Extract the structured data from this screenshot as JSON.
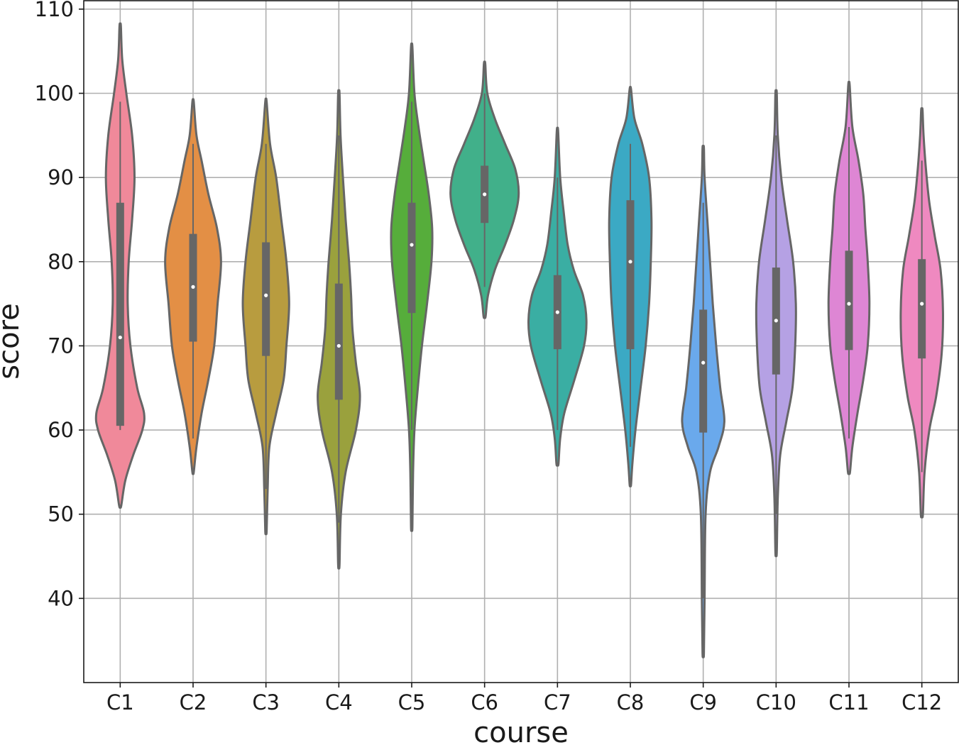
{
  "chart_data": {
    "type": "violin",
    "title": "",
    "xlabel": "course",
    "ylabel": "score",
    "ylim": [
      30,
      111
    ],
    "yticks": [
      40,
      50,
      60,
      70,
      80,
      90,
      100,
      110
    ],
    "ytick_labels": [
      "40",
      "50",
      "60",
      "70",
      "80",
      "90",
      "100",
      "110"
    ],
    "grid": true,
    "legend": "none",
    "categories": [
      "C1",
      "C2",
      "C3",
      "C4",
      "C5",
      "C6",
      "C7",
      "C8",
      "C9",
      "C10",
      "C11",
      "C12"
    ],
    "colors": [
      "#f0899a",
      "#e38f45",
      "#b89c3f",
      "#9aa13d",
      "#56ad3b",
      "#41b08a",
      "#3aaea3",
      "#3ba9c4",
      "#6aa9ec",
      "#b5a1e4",
      "#de86d4",
      "#ef89c0"
    ],
    "series": [
      {
        "course": "C1",
        "min": 51,
        "q1": 60.5,
        "median": 71,
        "q3": 87,
        "max": 108,
        "whisker_low": 60,
        "whisker_high": 99,
        "density": [
          [
            51,
            0.03
          ],
          [
            54,
            0.15
          ],
          [
            57,
            0.38
          ],
          [
            60,
            0.65
          ],
          [
            62,
            0.7
          ],
          [
            65,
            0.5
          ],
          [
            70,
            0.3
          ],
          [
            75,
            0.22
          ],
          [
            80,
            0.25
          ],
          [
            85,
            0.35
          ],
          [
            90,
            0.42
          ],
          [
            95,
            0.35
          ],
          [
            100,
            0.18
          ],
          [
            104,
            0.06
          ],
          [
            108,
            0.02
          ]
        ]
      },
      {
        "course": "C2",
        "min": 55,
        "q1": 70.5,
        "median": 77,
        "q3": 83.3,
        "max": 99,
        "whisker_low": 59,
        "whisker_high": 94,
        "density": [
          [
            55,
            0.02
          ],
          [
            58,
            0.1
          ],
          [
            62,
            0.25
          ],
          [
            66,
            0.45
          ],
          [
            70,
            0.62
          ],
          [
            75,
            0.72
          ],
          [
            80,
            0.82
          ],
          [
            84,
            0.7
          ],
          [
            88,
            0.45
          ],
          [
            92,
            0.25
          ],
          [
            95,
            0.1
          ],
          [
            99,
            0.02
          ]
        ]
      },
      {
        "course": "C3",
        "min": 48,
        "q1": 68.8,
        "median": 76,
        "q3": 82.3,
        "max": 99,
        "whisker_low": 53,
        "whisker_high": 94,
        "density": [
          [
            48,
            0.02
          ],
          [
            53,
            0.05
          ],
          [
            58,
            0.1
          ],
          [
            62,
            0.3
          ],
          [
            66,
            0.52
          ],
          [
            70,
            0.6
          ],
          [
            75,
            0.68
          ],
          [
            80,
            0.6
          ],
          [
            85,
            0.45
          ],
          [
            90,
            0.3
          ],
          [
            94,
            0.12
          ],
          [
            99,
            0.02
          ]
        ]
      },
      {
        "course": "C4",
        "min": 44,
        "q1": 63.6,
        "median": 70,
        "q3": 77.4,
        "max": 100,
        "whisker_low": 49,
        "whisker_high": 95,
        "density": [
          [
            44,
            0.02
          ],
          [
            50,
            0.06
          ],
          [
            55,
            0.2
          ],
          [
            60,
            0.5
          ],
          [
            64,
            0.62
          ],
          [
            68,
            0.5
          ],
          [
            72,
            0.4
          ],
          [
            76,
            0.36
          ],
          [
            80,
            0.3
          ],
          [
            85,
            0.2
          ],
          [
            90,
            0.12
          ],
          [
            95,
            0.05
          ],
          [
            100,
            0.02
          ]
        ]
      },
      {
        "course": "C5",
        "min": 48.5,
        "q1": 73.9,
        "median": 82,
        "q3": 87,
        "max": 105.5,
        "whisker_low": 60,
        "whisker_high": 99,
        "density": [
          [
            48.5,
            0.02
          ],
          [
            55,
            0.04
          ],
          [
            60,
            0.08
          ],
          [
            65,
            0.18
          ],
          [
            70,
            0.3
          ],
          [
            75,
            0.45
          ],
          [
            80,
            0.58
          ],
          [
            84,
            0.6
          ],
          [
            88,
            0.5
          ],
          [
            92,
            0.35
          ],
          [
            96,
            0.2
          ],
          [
            100,
            0.08
          ],
          [
            105.5,
            0.02
          ]
        ]
      },
      {
        "course": "C6",
        "min": 73.5,
        "q1": 84.6,
        "median": 88,
        "q3": 91.4,
        "max": 103.5,
        "whisker_low": 77,
        "whisker_high": 100,
        "density": [
          [
            73.5,
            0.03
          ],
          [
            76,
            0.1
          ],
          [
            79,
            0.3
          ],
          [
            82,
            0.6
          ],
          [
            85,
            0.86
          ],
          [
            88,
            1.0
          ],
          [
            91,
            0.9
          ],
          [
            94,
            0.6
          ],
          [
            97,
            0.3
          ],
          [
            100,
            0.08
          ],
          [
            103.5,
            0.02
          ]
        ]
      },
      {
        "course": "C7",
        "min": 56,
        "q1": 69.6,
        "median": 74,
        "q3": 78.4,
        "max": 95.5,
        "whisker_low": 60,
        "whisker_high": 90,
        "density": [
          [
            56,
            0.03
          ],
          [
            59,
            0.08
          ],
          [
            62,
            0.2
          ],
          [
            66,
            0.5
          ],
          [
            70,
            0.78
          ],
          [
            73,
            0.85
          ],
          [
            76,
            0.75
          ],
          [
            79,
            0.48
          ],
          [
            82,
            0.3
          ],
          [
            86,
            0.18
          ],
          [
            90,
            0.08
          ],
          [
            95.5,
            0.02
          ]
        ]
      },
      {
        "course": "C8",
        "min": 53.5,
        "q1": 69.6,
        "median": 80,
        "q3": 87.3,
        "max": 100.5,
        "whisker_low": 58,
        "whisker_high": 94,
        "density": [
          [
            53.5,
            0.02
          ],
          [
            56,
            0.06
          ],
          [
            60,
            0.15
          ],
          [
            65,
            0.3
          ],
          [
            70,
            0.45
          ],
          [
            75,
            0.55
          ],
          [
            80,
            0.6
          ],
          [
            85,
            0.62
          ],
          [
            90,
            0.55
          ],
          [
            94,
            0.35
          ],
          [
            97,
            0.12
          ],
          [
            100.5,
            0.02
          ]
        ]
      },
      {
        "course": "C9",
        "min": 33.5,
        "q1": 59.7,
        "median": 68,
        "q3": 74.3,
        "max": 93.5,
        "whisker_low": 40,
        "whisker_high": 87,
        "density": [
          [
            33.5,
            0.02
          ],
          [
            40,
            0.04
          ],
          [
            50,
            0.07
          ],
          [
            55,
            0.2
          ],
          [
            58,
            0.45
          ],
          [
            61,
            0.62
          ],
          [
            65,
            0.5
          ],
          [
            70,
            0.38
          ],
          [
            75,
            0.28
          ],
          [
            80,
            0.2
          ],
          [
            85,
            0.12
          ],
          [
            90,
            0.04
          ],
          [
            93.5,
            0.02
          ]
        ]
      },
      {
        "course": "C10",
        "min": 45.5,
        "q1": 66.6,
        "median": 73,
        "q3": 79.3,
        "max": 100,
        "whisker_low": 50,
        "whisker_high": 95,
        "density": [
          [
            45.5,
            0.02
          ],
          [
            52,
            0.05
          ],
          [
            57,
            0.12
          ],
          [
            61,
            0.3
          ],
          [
            65,
            0.48
          ],
          [
            70,
            0.56
          ],
          [
            75,
            0.58
          ],
          [
            80,
            0.5
          ],
          [
            85,
            0.32
          ],
          [
            90,
            0.15
          ],
          [
            95,
            0.05
          ],
          [
            100,
            0.02
          ]
        ]
      },
      {
        "course": "C11",
        "min": 55,
        "q1": 69.5,
        "median": 75,
        "q3": 81.3,
        "max": 101,
        "whisker_low": 59,
        "whisker_high": 96,
        "density": [
          [
            55,
            0.03
          ],
          [
            58,
            0.1
          ],
          [
            62,
            0.25
          ],
          [
            66,
            0.42
          ],
          [
            70,
            0.55
          ],
          [
            75,
            0.6
          ],
          [
            80,
            0.55
          ],
          [
            84,
            0.48
          ],
          [
            88,
            0.42
          ],
          [
            92,
            0.28
          ],
          [
            96,
            0.1
          ],
          [
            101,
            0.02
          ]
        ]
      },
      {
        "course": "C12",
        "min": 50,
        "q1": 68.5,
        "median": 75,
        "q3": 80.3,
        "max": 98,
        "whisker_low": 55,
        "whisker_high": 92,
        "density": [
          [
            50,
            0.03
          ],
          [
            55,
            0.08
          ],
          [
            60,
            0.22
          ],
          [
            64,
            0.42
          ],
          [
            69,
            0.58
          ],
          [
            74,
            0.62
          ],
          [
            79,
            0.55
          ],
          [
            83,
            0.38
          ],
          [
            87,
            0.22
          ],
          [
            91,
            0.12
          ],
          [
            95,
            0.05
          ],
          [
            98,
            0.02
          ]
        ]
      }
    ]
  }
}
